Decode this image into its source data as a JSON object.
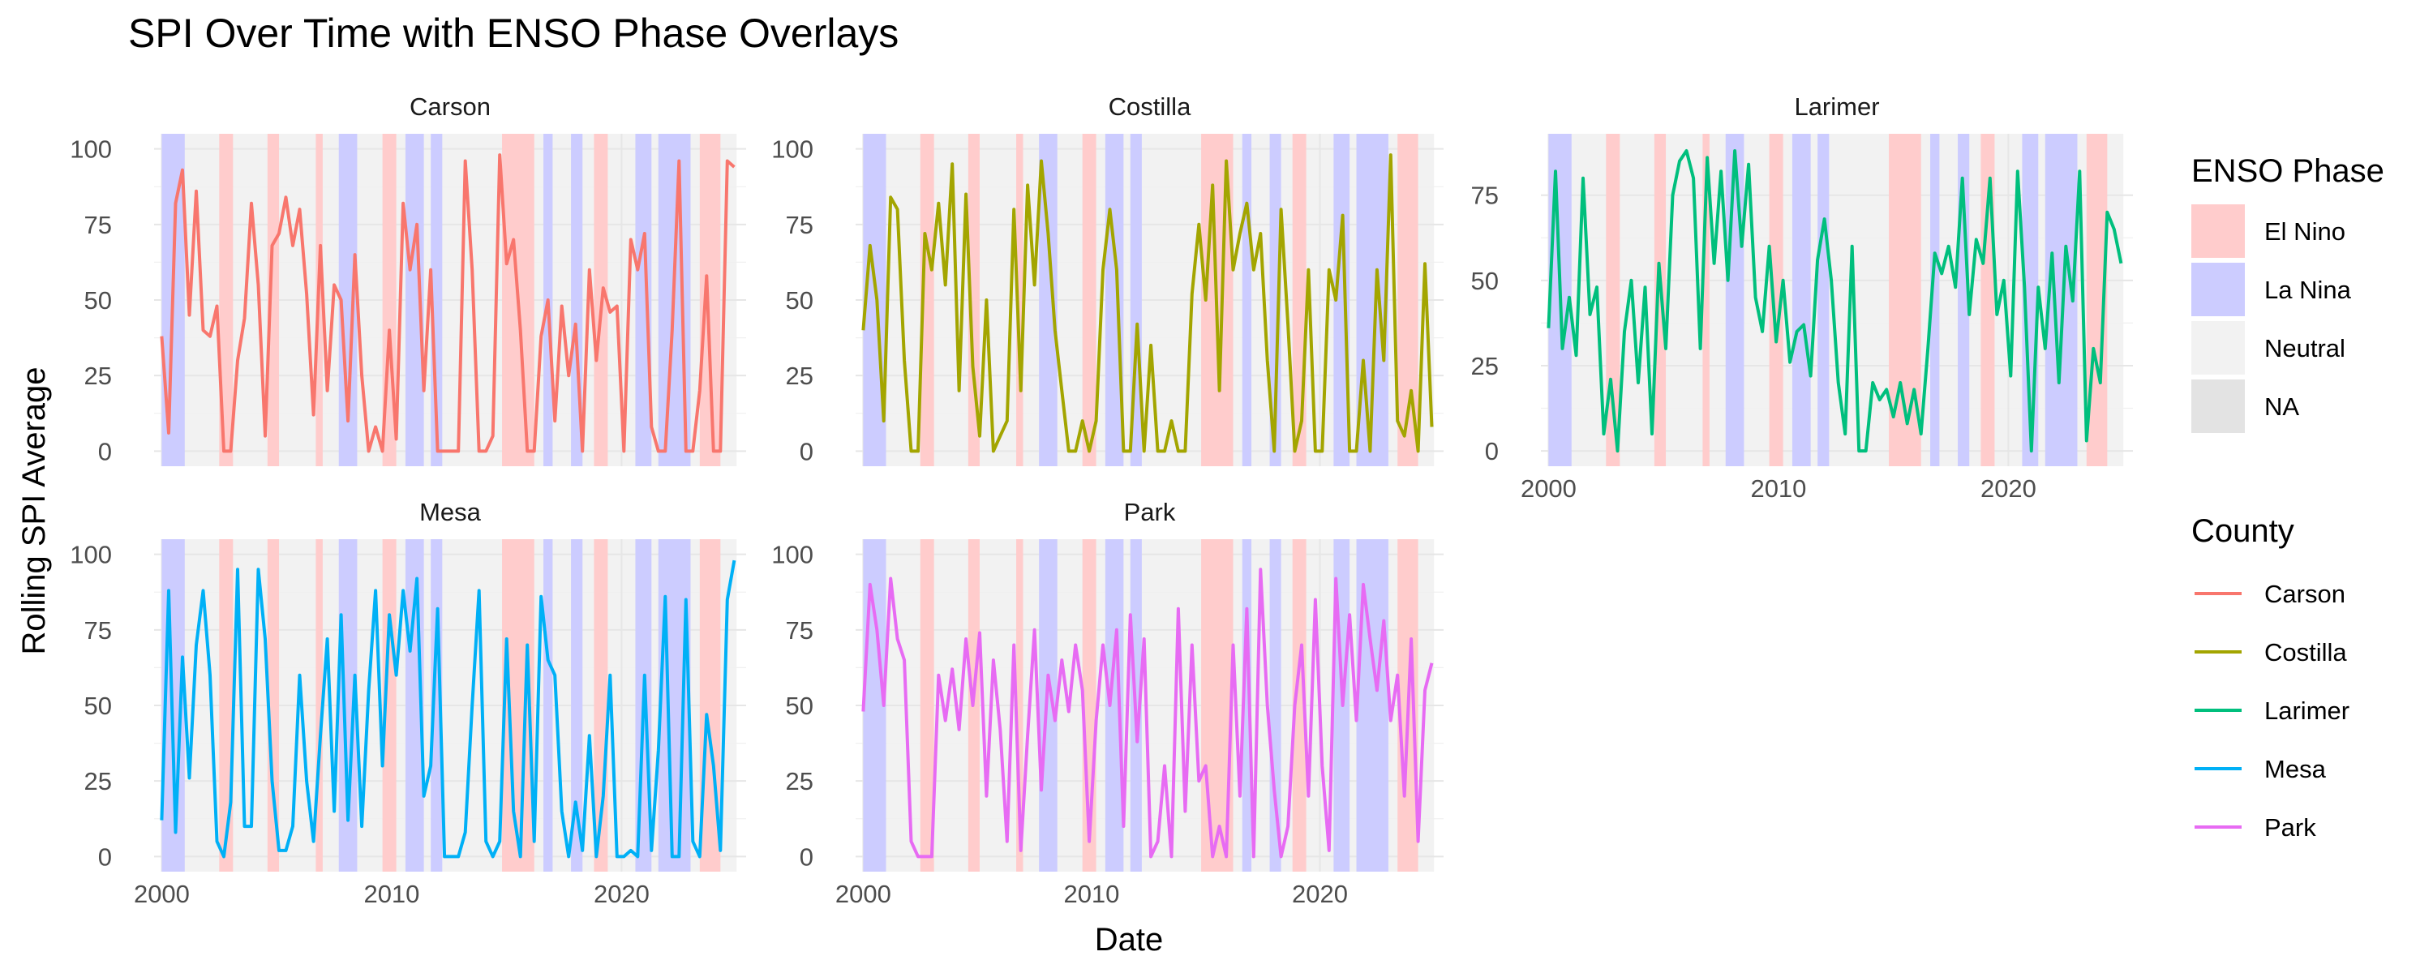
{
  "chart_data": {
    "type": "line",
    "title": "SPI Over Time with ENSO Phase Overlays",
    "xlabel": "Date",
    "ylabel": "Rolling SPI Average",
    "x_ticks": [
      "2000",
      "2010",
      "2020"
    ],
    "xlim": [
      "1999-09",
      "2025-06"
    ],
    "grid": true,
    "legend_position": "right",
    "enso_legend": {
      "title": "ENSO Phase",
      "entries": [
        {
          "label": "El Nino",
          "color": "#ffcccc"
        },
        {
          "label": "La Nina",
          "color": "#ccccff"
        },
        {
          "label": "Neutral",
          "color": "#f2f2f2"
        },
        {
          "label": "NA",
          "color": "#e3e3e3"
        }
      ]
    },
    "county_legend": {
      "title": "County",
      "entries": [
        {
          "label": "Carson",
          "color": "#f8766d"
        },
        {
          "label": "Costilla",
          "color": "#a3a500"
        },
        {
          "label": "Larimer",
          "color": "#00bf7d"
        },
        {
          "label": "Mesa",
          "color": "#00b0f6"
        },
        {
          "label": "Park",
          "color": "#e76bf3"
        }
      ]
    },
    "enso_periods": [
      {
        "phase": "La Nina",
        "start": 2000.0,
        "end": 2001.0
      },
      {
        "phase": "El Nino",
        "start": 2002.5,
        "end": 2003.1
      },
      {
        "phase": "El Nino",
        "start": 2004.6,
        "end": 2005.1
      },
      {
        "phase": "El Nino",
        "start": 2006.7,
        "end": 2007.0
      },
      {
        "phase": "La Nina",
        "start": 2007.7,
        "end": 2008.5
      },
      {
        "phase": "El Nino",
        "start": 2009.6,
        "end": 2010.2
      },
      {
        "phase": "La Nina",
        "start": 2010.6,
        "end": 2011.4
      },
      {
        "phase": "La Nina",
        "start": 2011.7,
        "end": 2012.2
      },
      {
        "phase": "El Nino",
        "start": 2014.8,
        "end": 2016.2
      },
      {
        "phase": "La Nina",
        "start": 2016.6,
        "end": 2017.0
      },
      {
        "phase": "La Nina",
        "start": 2017.8,
        "end": 2018.3
      },
      {
        "phase": "El Nino",
        "start": 2018.8,
        "end": 2019.4
      },
      {
        "phase": "La Nina",
        "start": 2020.6,
        "end": 2021.3
      },
      {
        "phase": "La Nina",
        "start": 2021.6,
        "end": 2023.0
      },
      {
        "phase": "El Nino",
        "start": 2023.4,
        "end": 2024.3
      }
    ],
    "panels": [
      {
        "name": "Carson",
        "color": "#f8766d",
        "ylim": [
          -5,
          105
        ],
        "y_ticks": [
          0,
          25,
          50,
          75,
          100
        ],
        "x": [
          2000.0,
          2000.3,
          2000.6,
          2000.9,
          2001.2,
          2001.5,
          2001.8,
          2002.1,
          2002.4,
          2002.7,
          2003.0,
          2003.3,
          2003.6,
          2003.9,
          2004.2,
          2004.5,
          2004.8,
          2005.1,
          2005.4,
          2005.7,
          2006.0,
          2006.3,
          2006.6,
          2006.9,
          2007.2,
          2007.5,
          2007.8,
          2008.1,
          2008.4,
          2008.7,
          2009.0,
          2009.3,
          2009.6,
          2009.9,
          2010.2,
          2010.5,
          2010.8,
          2011.1,
          2011.4,
          2011.7,
          2012.0,
          2012.3,
          2012.6,
          2012.9,
          2013.2,
          2013.5,
          2013.8,
          2014.1,
          2014.4,
          2014.7,
          2015.0,
          2015.3,
          2015.6,
          2015.9,
          2016.2,
          2016.5,
          2016.8,
          2017.1,
          2017.4,
          2017.7,
          2018.0,
          2018.3,
          2018.6,
          2018.9,
          2019.2,
          2019.5,
          2019.8,
          2020.1,
          2020.4,
          2020.7,
          2021.0,
          2021.3,
          2021.6,
          2021.9,
          2022.2,
          2022.5,
          2022.8,
          2023.1,
          2023.4,
          2023.7,
          2024.0,
          2024.3,
          2024.6,
          2024.9
        ],
        "y": [
          38,
          6,
          82,
          93,
          45,
          86,
          40,
          38,
          48,
          0,
          0,
          30,
          44,
          82,
          55,
          5,
          68,
          72,
          84,
          68,
          80,
          52,
          12,
          68,
          20,
          55,
          50,
          10,
          65,
          25,
          0,
          8,
          0,
          40,
          4,
          82,
          60,
          75,
          20,
          60,
          0,
          0,
          0,
          0,
          96,
          60,
          0,
          0,
          5,
          98,
          62,
          70,
          40,
          0,
          0,
          38,
          50,
          10,
          48,
          25,
          42,
          0,
          60,
          30,
          54,
          46,
          48,
          0,
          70,
          60,
          72,
          8,
          0,
          0,
          40,
          96,
          0,
          0,
          20,
          58,
          0,
          0,
          96,
          94
        ]
      },
      {
        "name": "Costilla",
        "color": "#a3a500",
        "ylim": [
          -5,
          105
        ],
        "y_ticks": [
          0,
          25,
          50,
          75,
          100
        ],
        "x": [
          2000.0,
          2000.3,
          2000.6,
          2000.9,
          2001.2,
          2001.5,
          2001.8,
          2002.1,
          2002.4,
          2002.7,
          2003.0,
          2003.3,
          2003.6,
          2003.9,
          2004.2,
          2004.5,
          2004.8,
          2005.1,
          2005.4,
          2005.7,
          2006.0,
          2006.3,
          2006.6,
          2006.9,
          2007.2,
          2007.5,
          2007.8,
          2008.1,
          2008.4,
          2008.7,
          2009.0,
          2009.3,
          2009.6,
          2009.9,
          2010.2,
          2010.5,
          2010.8,
          2011.1,
          2011.4,
          2011.7,
          2012.0,
          2012.3,
          2012.6,
          2012.9,
          2013.2,
          2013.5,
          2013.8,
          2014.1,
          2014.4,
          2014.7,
          2015.0,
          2015.3,
          2015.6,
          2015.9,
          2016.2,
          2016.5,
          2016.8,
          2017.1,
          2017.4,
          2017.7,
          2018.0,
          2018.3,
          2018.6,
          2018.9,
          2019.2,
          2019.5,
          2019.8,
          2020.1,
          2020.4,
          2020.7,
          2021.0,
          2021.3,
          2021.6,
          2021.9,
          2022.2,
          2022.5,
          2022.8,
          2023.1,
          2023.4,
          2023.7,
          2024.0,
          2024.3,
          2024.6,
          2024.9
        ],
        "y": [
          40,
          68,
          50,
          10,
          84,
          80,
          30,
          0,
          0,
          72,
          60,
          82,
          55,
          95,
          20,
          85,
          28,
          5,
          50,
          0,
          5,
          10,
          80,
          20,
          88,
          55,
          96,
          72,
          40,
          20,
          0,
          0,
          10,
          0,
          10,
          60,
          80,
          60,
          0,
          0,
          42,
          0,
          35,
          0,
          0,
          10,
          0,
          0,
          52,
          75,
          50,
          88,
          20,
          96,
          60,
          72,
          82,
          60,
          72,
          30,
          0,
          80,
          42,
          0,
          10,
          60,
          0,
          0,
          60,
          50,
          78,
          0,
          0,
          30,
          0,
          60,
          30,
          98,
          10,
          5,
          20,
          0,
          62,
          8
        ]
      },
      {
        "name": "Larimer",
        "color": "#00bf7d",
        "ylim": [
          -4.5,
          93
        ],
        "y_ticks": [
          0,
          25,
          50,
          75
        ],
        "x": [
          2000.0,
          2000.3,
          2000.6,
          2000.9,
          2001.2,
          2001.5,
          2001.8,
          2002.1,
          2002.4,
          2002.7,
          2003.0,
          2003.3,
          2003.6,
          2003.9,
          2004.2,
          2004.5,
          2004.8,
          2005.1,
          2005.4,
          2005.7,
          2006.0,
          2006.3,
          2006.6,
          2006.9,
          2007.2,
          2007.5,
          2007.8,
          2008.1,
          2008.4,
          2008.7,
          2009.0,
          2009.3,
          2009.6,
          2009.9,
          2010.2,
          2010.5,
          2010.8,
          2011.1,
          2011.4,
          2011.7,
          2012.0,
          2012.3,
          2012.6,
          2012.9,
          2013.2,
          2013.5,
          2013.8,
          2014.1,
          2014.4,
          2014.7,
          2015.0,
          2015.3,
          2015.6,
          2015.9,
          2016.2,
          2016.5,
          2016.8,
          2017.1,
          2017.4,
          2017.7,
          2018.0,
          2018.3,
          2018.6,
          2018.9,
          2019.2,
          2019.5,
          2019.8,
          2020.1,
          2020.4,
          2020.7,
          2021.0,
          2021.3,
          2021.6,
          2021.9,
          2022.2,
          2022.5,
          2022.8,
          2023.1,
          2023.4,
          2023.7,
          2024.0,
          2024.3,
          2024.6,
          2024.9
        ],
        "y": [
          36,
          82,
          30,
          45,
          28,
          80,
          40,
          48,
          5,
          21,
          0,
          35,
          50,
          20,
          48,
          5,
          55,
          30,
          75,
          85,
          88,
          80,
          30,
          86,
          55,
          82,
          50,
          88,
          60,
          84,
          45,
          35,
          60,
          32,
          50,
          26,
          35,
          37,
          22,
          56,
          68,
          50,
          20,
          5,
          60,
          0,
          0,
          20,
          15,
          18,
          10,
          20,
          8,
          18,
          5,
          30,
          58,
          52,
          60,
          48,
          80,
          40,
          62,
          55,
          80,
          40,
          50,
          22,
          82,
          48,
          0,
          48,
          30,
          58,
          20,
          60,
          44,
          82,
          3,
          30,
          20,
          70,
          65,
          55
        ]
      },
      {
        "name": "Mesa",
        "color": "#00b0f6",
        "ylim": [
          -5,
          105
        ],
        "y_ticks": [
          0,
          25,
          50,
          75,
          100
        ],
        "x": [
          2000.0,
          2000.3,
          2000.6,
          2000.9,
          2001.2,
          2001.5,
          2001.8,
          2002.1,
          2002.4,
          2002.7,
          2003.0,
          2003.3,
          2003.6,
          2003.9,
          2004.2,
          2004.5,
          2004.8,
          2005.1,
          2005.4,
          2005.7,
          2006.0,
          2006.3,
          2006.6,
          2006.9,
          2007.2,
          2007.5,
          2007.8,
          2008.1,
          2008.4,
          2008.7,
          2009.0,
          2009.3,
          2009.6,
          2009.9,
          2010.2,
          2010.5,
          2010.8,
          2011.1,
          2011.4,
          2011.7,
          2012.0,
          2012.3,
          2012.6,
          2012.9,
          2013.2,
          2013.5,
          2013.8,
          2014.1,
          2014.4,
          2014.7,
          2015.0,
          2015.3,
          2015.6,
          2015.9,
          2016.2,
          2016.5,
          2016.8,
          2017.1,
          2017.4,
          2017.7,
          2018.0,
          2018.3,
          2018.6,
          2018.9,
          2019.2,
          2019.5,
          2019.8,
          2020.1,
          2020.4,
          2020.7,
          2021.0,
          2021.3,
          2021.6,
          2021.9,
          2022.2,
          2022.5,
          2022.8,
          2023.1,
          2023.4,
          2023.7,
          2024.0,
          2024.3,
          2024.6,
          2024.9
        ],
        "y": [
          12,
          88,
          8,
          66,
          26,
          70,
          88,
          60,
          5,
          0,
          18,
          95,
          10,
          10,
          95,
          72,
          25,
          2,
          2,
          10,
          60,
          25,
          5,
          40,
          72,
          15,
          80,
          12,
          60,
          10,
          55,
          88,
          30,
          80,
          60,
          88,
          68,
          92,
          20,
          30,
          82,
          0,
          0,
          0,
          8,
          50,
          88,
          5,
          0,
          5,
          72,
          15,
          0,
          70,
          5,
          86,
          65,
          60,
          15,
          0,
          18,
          2,
          40,
          0,
          20,
          60,
          0,
          0,
          2,
          0,
          60,
          2,
          35,
          86,
          0,
          0,
          85,
          5,
          0,
          47,
          30,
          2,
          85,
          98
        ]
      },
      {
        "name": "Park",
        "color": "#e76bf3",
        "ylim": [
          -5,
          105
        ],
        "y_ticks": [
          0,
          25,
          50,
          75,
          100
        ],
        "x": [
          2000.0,
          2000.3,
          2000.6,
          2000.9,
          2001.2,
          2001.5,
          2001.8,
          2002.1,
          2002.4,
          2002.7,
          2003.0,
          2003.3,
          2003.6,
          2003.9,
          2004.2,
          2004.5,
          2004.8,
          2005.1,
          2005.4,
          2005.7,
          2006.0,
          2006.3,
          2006.6,
          2006.9,
          2007.2,
          2007.5,
          2007.8,
          2008.1,
          2008.4,
          2008.7,
          2009.0,
          2009.3,
          2009.6,
          2009.9,
          2010.2,
          2010.5,
          2010.8,
          2011.1,
          2011.4,
          2011.7,
          2012.0,
          2012.3,
          2012.6,
          2012.9,
          2013.2,
          2013.5,
          2013.8,
          2014.1,
          2014.4,
          2014.7,
          2015.0,
          2015.3,
          2015.6,
          2015.9,
          2016.2,
          2016.5,
          2016.8,
          2017.1,
          2017.4,
          2017.7,
          2018.0,
          2018.3,
          2018.6,
          2018.9,
          2019.2,
          2019.5,
          2019.8,
          2020.1,
          2020.4,
          2020.7,
          2021.0,
          2021.3,
          2021.6,
          2021.9,
          2022.2,
          2022.5,
          2022.8,
          2023.1,
          2023.4,
          2023.7,
          2024.0,
          2024.3,
          2024.6,
          2024.9
        ],
        "y": [
          48,
          90,
          75,
          50,
          92,
          72,
          65,
          5,
          0,
          0,
          0,
          60,
          45,
          62,
          42,
          72,
          50,
          74,
          20,
          65,
          42,
          5,
          70,
          2,
          40,
          75,
          22,
          60,
          45,
          65,
          48,
          70,
          55,
          5,
          45,
          70,
          50,
          75,
          10,
          80,
          38,
          72,
          0,
          5,
          30,
          0,
          82,
          15,
          70,
          25,
          30,
          0,
          10,
          0,
          70,
          20,
          82,
          0,
          95,
          50,
          22,
          0,
          10,
          50,
          70,
          20,
          85,
          30,
          2,
          92,
          50,
          80,
          45,
          90,
          72,
          55,
          78,
          45,
          60,
          20,
          72,
          5,
          55,
          64
        ]
      }
    ]
  }
}
